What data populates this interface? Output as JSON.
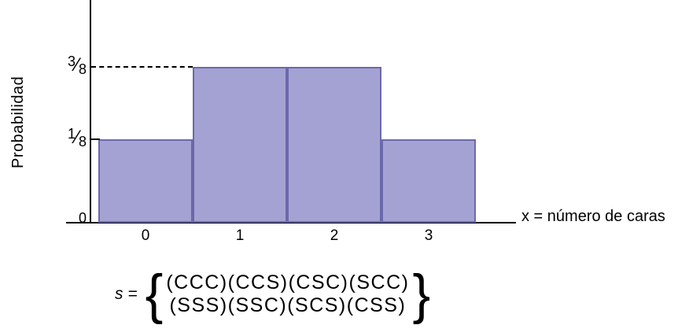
{
  "chart_data": {
    "type": "bar",
    "title": "",
    "categories": [
      "0",
      "1",
      "2",
      "3"
    ],
    "values": [
      0.125,
      0.375,
      0.375,
      0.125
    ],
    "value_labels": [
      "1/8",
      "3/8",
      "3/8",
      "1/8"
    ],
    "xlabel": "x = número de caras",
    "ylabel": "Probabilidad",
    "ylim": [
      0,
      0.5
    ],
    "grid": false,
    "legend": "none",
    "y_ticks": [
      {
        "numerator": "3",
        "slash": "⁄",
        "denominator": "8",
        "value": 0.375
      },
      {
        "numerator": "1",
        "slash": "⁄",
        "denominator": "8",
        "value": 0.125
      },
      {
        "label": "0",
        "value": 0
      }
    ],
    "colors": {
      "bar_fill": "#a4a2d2",
      "bar_border": "#6b68ad",
      "axis": "#000000",
      "dashed_line": "#000000"
    }
  },
  "annotation": {
    "s_label": "s =",
    "brace_left": "{",
    "brace_right": "}",
    "line1": "(CCC)(CCS)(CSC)(SCC)",
    "line2": "(SSS)(SSC)(SCS)(CSS)"
  }
}
